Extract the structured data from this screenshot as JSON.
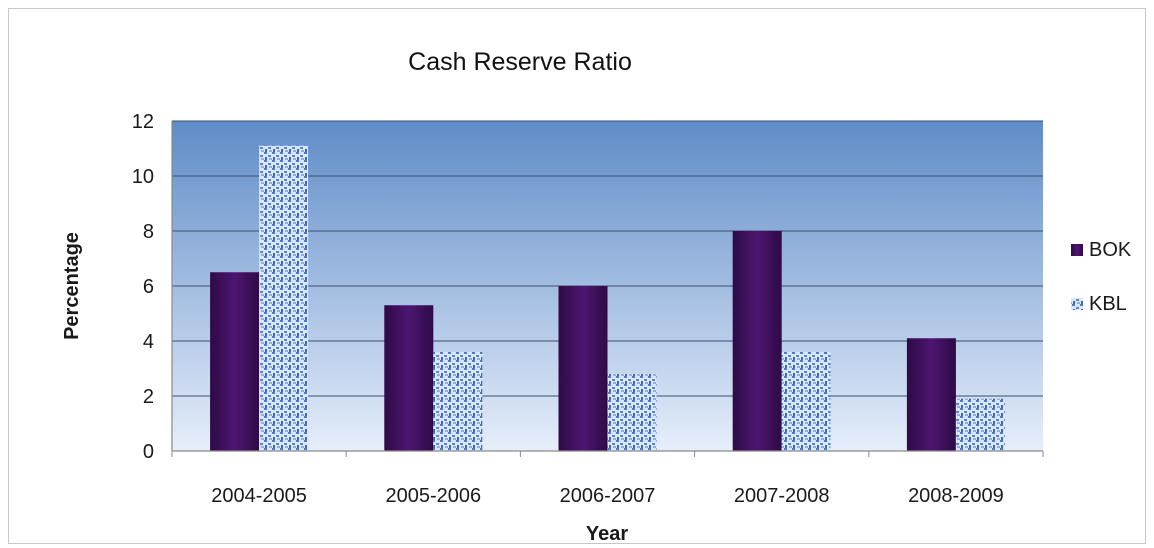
{
  "chart_data": {
    "type": "bar",
    "title": "Cash Reserve Ratio",
    "xlabel": "Year",
    "ylabel": "Percentage",
    "categories": [
      "2004-2005",
      "2005-2006",
      "2006-2007",
      "2007-2008",
      "2008-2009"
    ],
    "series": [
      {
        "name": "BOK",
        "values": [
          6.5,
          5.3,
          6.0,
          8.0,
          4.1
        ],
        "color": "#3f0f5c"
      },
      {
        "name": "KBL",
        "values": [
          11.1,
          3.6,
          2.8,
          3.6,
          1.9
        ],
        "color": "#6f95d8"
      }
    ],
    "ylim": [
      0,
      12
    ],
    "yticks": [
      0,
      2,
      4,
      6,
      8,
      10,
      12
    ],
    "grid": true,
    "legend_position": "right",
    "plot_background": [
      "#5f8cc8",
      "#e6eefa"
    ]
  }
}
